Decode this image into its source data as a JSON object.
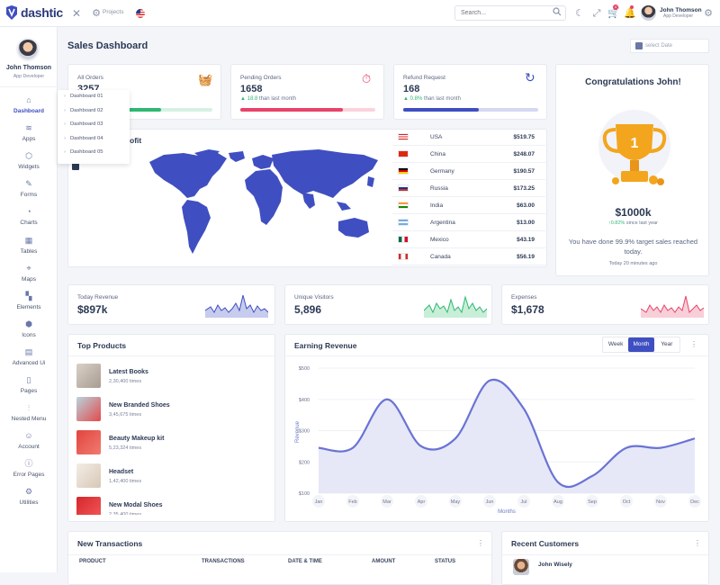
{
  "app": {
    "name": "dashtic"
  },
  "topbar": {
    "projects_label": "Projects",
    "search_placeholder": "Search...",
    "cart_badge": "4",
    "user_name": "John Thomson",
    "user_role": "App Developer"
  },
  "sidebar": {
    "user_name": "John Thomson",
    "user_role": "App Developer",
    "items": [
      {
        "label": "Dashboard",
        "icon": "home-icon"
      },
      {
        "label": "Apps",
        "icon": "layers-icon"
      },
      {
        "label": "Widgets",
        "icon": "box-icon"
      },
      {
        "label": "Forms",
        "icon": "edit-icon"
      },
      {
        "label": "Charts",
        "icon": "pie-chart-icon"
      },
      {
        "label": "Tables",
        "icon": "table-icon"
      },
      {
        "label": "Maps",
        "icon": "map-pin-icon"
      },
      {
        "label": "Elements",
        "icon": "grid-icon"
      },
      {
        "label": "Icons",
        "icon": "hexagon-icon"
      },
      {
        "label": "Advanced Ui",
        "icon": "archive-icon"
      },
      {
        "label": "Pages",
        "icon": "file-icon"
      },
      {
        "label": "Nested Menu",
        "icon": "sliders-icon"
      },
      {
        "label": "Account",
        "icon": "users-icon"
      },
      {
        "label": "Error Pages",
        "icon": "info-icon"
      },
      {
        "label": "Utilities",
        "icon": "settings-icon"
      }
    ],
    "submenu": [
      "Dashboard 01",
      "Dashboard 02",
      "Dashboard 03",
      "Dashboard 04",
      "Dashboard 05"
    ]
  },
  "page": {
    "title": "Sales Dashboard",
    "date_placeholder": "select Date"
  },
  "stats": [
    {
      "label": "All Orders",
      "value": "3257",
      "change": "",
      "note": "",
      "progress": 0.62,
      "color": "#2eb873"
    },
    {
      "label": "Pending Orders",
      "value": "1658",
      "change": "18.8",
      "note": "than last month",
      "progress": 0.76,
      "color": "#e8436a"
    },
    {
      "label": "Refund Request",
      "value": "168",
      "change": "0.8%",
      "note": "than last month",
      "progress": 0.56,
      "color": "#3f4fc1"
    }
  ],
  "map_card": {
    "title_suffix": "ofit"
  },
  "countries": [
    {
      "name": "USA",
      "value": "$519.75"
    },
    {
      "name": "China",
      "value": "$248.07"
    },
    {
      "name": "Germany",
      "value": "$190.57"
    },
    {
      "name": "Russia",
      "value": "$173.25"
    },
    {
      "name": "India",
      "value": "$63.00"
    },
    {
      "name": "Argentina",
      "value": "$13.00"
    },
    {
      "name": "Mexico",
      "value": "$43.19"
    },
    {
      "name": "Canada",
      "value": "$56.19"
    }
  ],
  "congrats": {
    "title": "Congratulations John!",
    "amount": "$1000k",
    "change": "0.82%",
    "change_note": "since last year",
    "message": "You have done 99.9% target sales reached today.",
    "time": "Today 20 minutes ago",
    "trophy_number": "1"
  },
  "mini_stats": [
    {
      "label": "Today Revenue",
      "value": "$897k",
      "color": "#3f4fc1"
    },
    {
      "label": "Unique Visitors",
      "value": "5,896",
      "color": "#2eb873"
    },
    {
      "label": "Expenses",
      "value": "$1,678",
      "color": "#e8436a"
    }
  ],
  "top_products": {
    "title": "Top Products",
    "items": [
      {
        "name": "Latest Books",
        "count": "2,30,400 times"
      },
      {
        "name": "New Branded Shoes",
        "count": "3,45,675 times"
      },
      {
        "name": "Beauty Makeup kit",
        "count": "5,23,324 times"
      },
      {
        "name": "Headset",
        "count": "1,42,400 times"
      },
      {
        "name": "New Modal Shoes",
        "count": "2,35,400 times"
      }
    ]
  },
  "earning": {
    "title": "Earning Revenue",
    "tabs": [
      "Week",
      "Month",
      "Year"
    ],
    "active_tab": "Month"
  },
  "chart_data": {
    "type": "area",
    "title": "Earning Revenue",
    "xlabel": "Months",
    "ylabel": "Revenue",
    "categories": [
      "Jan",
      "Feb",
      "Mar",
      "Apr",
      "May",
      "Jun",
      "Jul",
      "Aug",
      "Sep",
      "Oct",
      "Nov",
      "Dec"
    ],
    "y_ticks": [
      "$500",
      "$400",
      "$300",
      "$200",
      "$100"
    ],
    "ylim": [
      100,
      500
    ],
    "series": [
      {
        "values": [
          245,
          245,
          400,
          250,
          275,
          460,
          370,
          135,
          155,
          245,
          245,
          275
        ]
      }
    ]
  },
  "transactions": {
    "title": "New Transactions",
    "columns": [
      "PRODUCT",
      "TRANSACTIONS",
      "DATE & TIME",
      "AMOUNT",
      "STATUS"
    ]
  },
  "customers": {
    "title": "Recent Customers",
    "first_name": "John Wisely"
  }
}
